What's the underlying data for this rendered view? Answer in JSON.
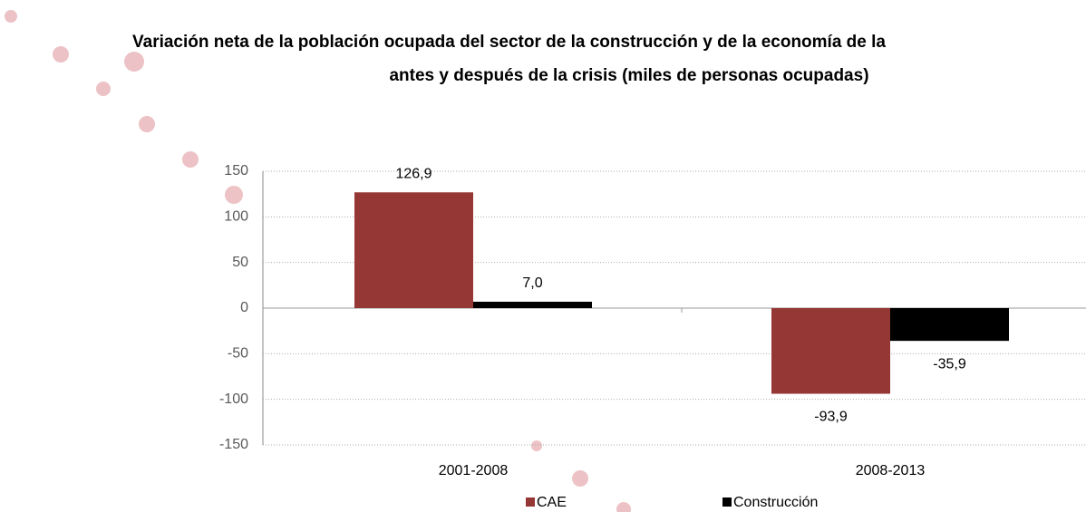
{
  "chart_data": {
    "type": "bar",
    "title": [
      "Variación neta de la población ocupada del sector de la construcción y de la economía de la",
      "antes y después de la crisis (miles de personas ocupadas)"
    ],
    "categories": [
      "2001-2008",
      "2008-2013"
    ],
    "series": [
      {
        "name": "CAE",
        "color": "#953735",
        "values": [
          126.9,
          -93.9
        ],
        "value_labels": [
          "126,9",
          "-93,9"
        ]
      },
      {
        "name": "Construcción",
        "color": "#000000",
        "values": [
          7.0,
          -35.9
        ],
        "value_labels": [
          "7,0",
          "-35,9"
        ]
      }
    ],
    "ylim": [
      -150,
      150
    ],
    "yticks": [
      -150,
      -100,
      -50,
      0,
      50,
      100,
      150
    ],
    "grid": true
  }
}
